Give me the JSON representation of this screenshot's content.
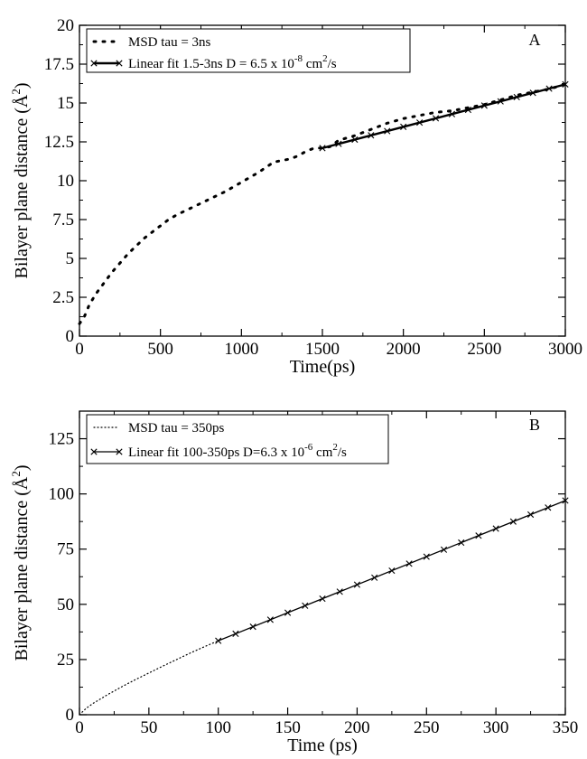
{
  "chart_data": [
    {
      "panel": "A",
      "type": "scatter",
      "xlabel": "Time(ps)",
      "ylabel": "Bilayer plane distance",
      "ylabel_unit": "Å",
      "ylabel_unit_exp": "2",
      "xlim": [
        0,
        3000
      ],
      "ylim": [
        0,
        20
      ],
      "xticks": [
        0,
        500,
        1000,
        1500,
        2000,
        2500,
        3000
      ],
      "yticks": [
        0,
        2.5,
        5,
        7.5,
        10,
        12.5,
        15,
        17.5,
        20
      ],
      "ytick_labels": [
        "0",
        "2.5",
        "5",
        "7.5",
        "10",
        "12.5",
        "15",
        "17.5",
        "20"
      ],
      "legend_position": "top-left",
      "series": [
        {
          "name": "MSD tau = 3ns",
          "style": "dotted-thick",
          "x": [
            0,
            30,
            60,
            100,
            150,
            200,
            250,
            300,
            350,
            400,
            450,
            500,
            550,
            600,
            700,
            800,
            900,
            1000,
            1100,
            1200,
            1250,
            1300,
            1350,
            1400,
            1450,
            1500,
            1550,
            1600,
            1700,
            1800,
            1900,
            2000,
            2100,
            2200,
            2300,
            2400,
            2500,
            2600,
            2700,
            2800,
            2900,
            3000
          ],
          "y": [
            0.8,
            1.25,
            2.0,
            2.7,
            3.4,
            4.1,
            4.7,
            5.3,
            5.8,
            6.3,
            6.7,
            7.1,
            7.5,
            7.8,
            8.3,
            8.8,
            9.3,
            9.9,
            10.5,
            11.2,
            11.3,
            11.4,
            11.6,
            11.9,
            12.1,
            12.1,
            12.2,
            12.6,
            12.9,
            13.3,
            13.7,
            14.0,
            14.2,
            14.4,
            14.5,
            14.7,
            14.9,
            15.2,
            15.5,
            15.7,
            15.9,
            16.2
          ]
        },
        {
          "name": "Linear fit 1.5-3ns D = 6.5 x 10",
          "name_exp": "-8",
          "name_unit": " cm",
          "name_unit_exp": "2",
          "name_tail": "/s",
          "style": "line-x",
          "x": [
            1500,
            3000
          ],
          "y": [
            12.1,
            16.2
          ],
          "marker_count": 16
        }
      ]
    },
    {
      "panel": "B",
      "type": "scatter",
      "xlabel": "Time (ps)",
      "ylabel": "Bilayer plane distance",
      "ylabel_unit": "Å",
      "ylabel_unit_exp": "2",
      "xlim": [
        0,
        350
      ],
      "ylim": [
        0,
        137.5
      ],
      "xticks": [
        0,
        50,
        100,
        150,
        200,
        250,
        300,
        350
      ],
      "yticks": [
        0,
        25,
        50,
        75,
        100,
        125
      ],
      "ytick_labels": [
        "0",
        "25",
        "50",
        "75",
        "100",
        "125"
      ],
      "legend_position": "top-left",
      "series": [
        {
          "name": "MSD tau = 350ps",
          "style": "dotted-thin",
          "x": [
            0,
            5,
            10,
            20,
            30,
            40,
            50,
            60,
            70,
            80,
            90,
            100
          ],
          "y": [
            0,
            3.0,
            5.2,
            9.0,
            12.5,
            15.8,
            18.9,
            22.0,
            25.0,
            28.0,
            30.8,
            33.5
          ]
        },
        {
          "name": "Linear fit 100-350ps D=6.3 x 10",
          "name_exp": "-6",
          "name_unit": " cm",
          "name_unit_exp": "2",
          "name_tail": "/s",
          "style": "line-x",
          "x": [
            100,
            350
          ],
          "y": [
            33.5,
            97.0
          ],
          "marker_count": 21
        }
      ]
    }
  ]
}
